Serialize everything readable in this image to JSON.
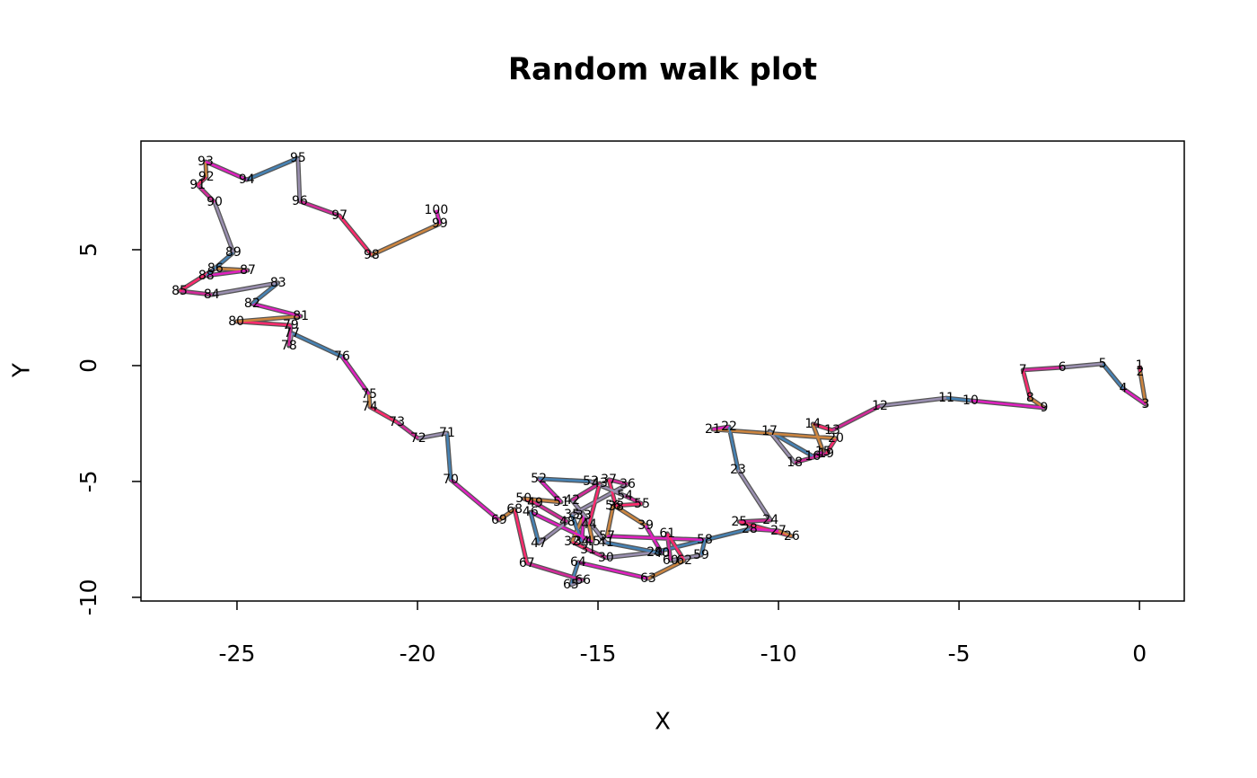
{
  "chart_data": {
    "type": "line",
    "title": "Random walk plot",
    "x_label": "X",
    "y_label": "Y",
    "labels": [
      1,
      2,
      3,
      4,
      5,
      6,
      7,
      8,
      9,
      10,
      11,
      12,
      13,
      14,
      15,
      16,
      17,
      18,
      19,
      20,
      21,
      22,
      23,
      24,
      25,
      26,
      27,
      28,
      29,
      30,
      31,
      32,
      33,
      34,
      35,
      36,
      37,
      38,
      39,
      40,
      41,
      42,
      43,
      44,
      45,
      46,
      47,
      48,
      49,
      50,
      51,
      52,
      53,
      54,
      55,
      56,
      57,
      58,
      59,
      60,
      61,
      62,
      63,
      64,
      65,
      66,
      67,
      68,
      69,
      70,
      71,
      72,
      73,
      74,
      75,
      76,
      77,
      78,
      79,
      80,
      81,
      82,
      83,
      84,
      85,
      86,
      87,
      88,
      89,
      90,
      91,
      92,
      93,
      94,
      95,
      96,
      97,
      98,
      99,
      100
    ],
    "x": [
      0,
      0.02,
      0.17,
      -0.45,
      -1.02,
      -2.14,
      -3.23,
      -3.03,
      -2.64,
      -4.68,
      -5.35,
      -7.19,
      -8.51,
      -9.05,
      -8.76,
      -9.05,
      -10.25,
      -9.55,
      -8.68,
      -8.41,
      -11.82,
      -11.37,
      -11.12,
      -10.22,
      -11.09,
      -9.63,
      -10.0,
      -10.8,
      -13.43,
      -14.78,
      -15.27,
      -15.72,
      -15.4,
      -15.45,
      -15.72,
      -14.18,
      -14.7,
      -14.5,
      -13.68,
      -13.23,
      -14.78,
      -15.72,
      -14.95,
      -15.25,
      -15.15,
      -16.87,
      -16.64,
      -15.85,
      -16.74,
      -17.06,
      -16.02,
      -16.64,
      -15.2,
      -14.25,
      -13.78,
      -14.58,
      -14.75,
      -12.04,
      -12.14,
      -12.99,
      -13.08,
      -12.61,
      -13.61,
      -15.55,
      -15.75,
      -15.42,
      -16.97,
      -17.31,
      -17.74,
      -19.08,
      -19.18,
      -19.98,
      -20.57,
      -21.32,
      -21.34,
      -22.09,
      -23.48,
      -23.56,
      -23.51,
      -25.02,
      -23.23,
      -24.58,
      -23.86,
      -25.7,
      -26.59,
      -25.6,
      -24.7,
      -25.85,
      -25.1,
      -25.62,
      -26.09,
      -25.85,
      -25.87,
      -24.73,
      -23.31,
      -23.26,
      -22.16,
      -21.27,
      -19.38,
      -19.48
    ],
    "y": [
      0,
      -0.27,
      -1.67,
      -1.0,
      0.08,
      -0.08,
      -0.19,
      -1.4,
      -1.82,
      -1.51,
      -1.4,
      -1.74,
      -2.79,
      -2.52,
      -3.72,
      -3.91,
      -2.83,
      -4.19,
      -3.8,
      -3.14,
      -2.75,
      -2.64,
      -4.5,
      -6.67,
      -6.74,
      -7.36,
      -7.13,
      -7.05,
      -8.06,
      -8.29,
      -7.95,
      -7.6,
      -6.47,
      -7.6,
      -6.43,
      -5.12,
      -4.92,
      -6.09,
      -6.9,
      -8.1,
      -7.64,
      -5.81,
      -5.08,
      -6.86,
      -7.6,
      -6.32,
      -7.67,
      -6.74,
      -5.93,
      -5.74,
      -5.89,
      -4.88,
      -5.0,
      -5.62,
      -5.97,
      -6.05,
      -7.36,
      -7.52,
      -8.18,
      -8.41,
      -7.25,
      -8.41,
      -9.19,
      -8.49,
      -9.46,
      -9.26,
      -8.53,
      -6.2,
      -6.67,
      -4.92,
      -2.91,
      -3.14,
      -2.44,
      -1.78,
      -1.24,
      0.39,
      1.4,
      0.85,
      1.74,
      1.9,
      2.13,
      2.67,
      3.57,
      3.06,
      3.22,
      4.19,
      4.11,
      3.88,
      4.88,
      7.05,
      7.79,
      8.14,
      8.8,
      8.02,
      8.95,
      7.09,
      6.47,
      4.77,
      6.12,
      6.71
    ],
    "xlim": [
      -27.66,
      1.24
    ],
    "ylim": [
      -10.16,
      9.69
    ],
    "xticks": [
      -25,
      -20,
      -15,
      -10,
      -5,
      0
    ],
    "yticks": [
      -10,
      -5,
      0,
      5
    ],
    "outline_color": "#555555",
    "segment_colors": [
      "#ff2a6d",
      "#cd853f",
      "#e020c0",
      "#4682b4",
      "#9a8fb0",
      "#d42a9a"
    ]
  }
}
